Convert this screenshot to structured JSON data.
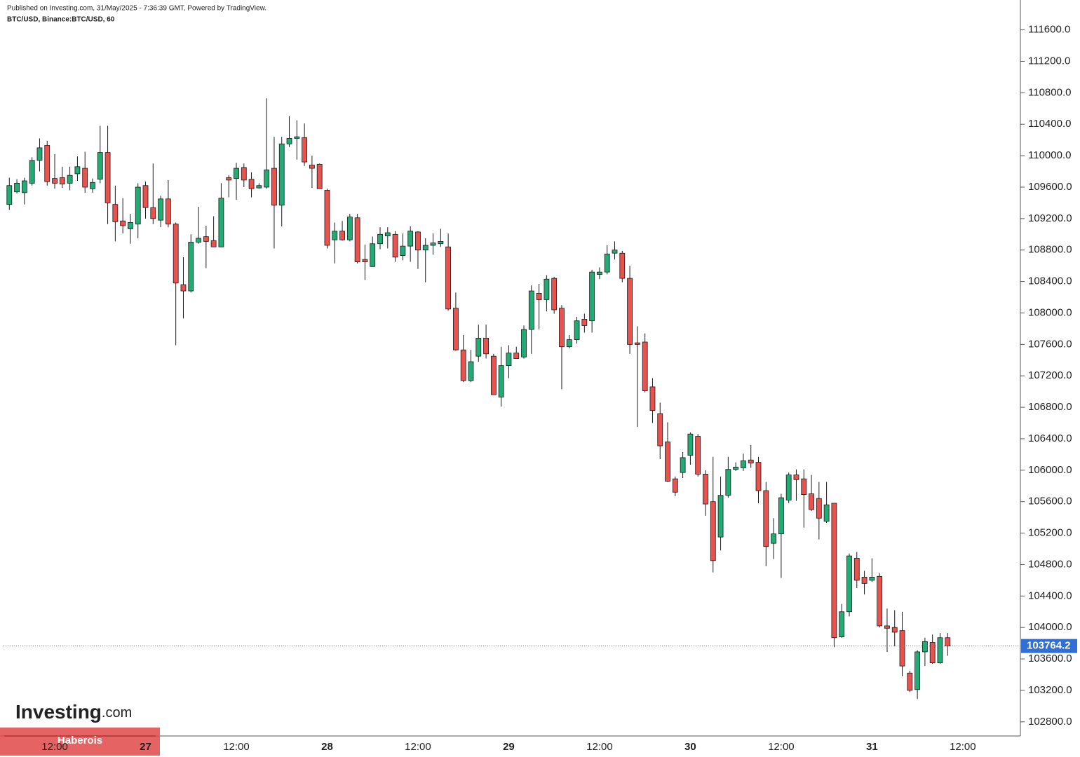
{
  "header": {
    "published": "Published on Investing.com, 31/May/2025 - 7:36:39 GMT, Powered by TradingView.",
    "symbol": "BTC/USD, Binance:BTC/USD, 60"
  },
  "watermark": {
    "logo": "Investing",
    "logo_suffix": ".com",
    "banner": "Haberois"
  },
  "chart_data": {
    "type": "candlestick",
    "up_color": "#22ab74",
    "down_color": "#e8534f",
    "ylim": [
      102620,
      111980
    ],
    "yticks": [
      {
        "value": 102800,
        "label": "102800.0"
      },
      {
        "value": 103200,
        "label": "103200.0"
      },
      {
        "value": 103600,
        "label": "103600.0"
      },
      {
        "value": 104000,
        "label": "104000.0"
      },
      {
        "value": 104400,
        "label": "104400.0"
      },
      {
        "value": 104800,
        "label": "104800.0"
      },
      {
        "value": 105200,
        "label": "105200.0"
      },
      {
        "value": 105600,
        "label": "105600.0"
      },
      {
        "value": 106000,
        "label": "106000.0"
      },
      {
        "value": 106400,
        "label": "106400.0"
      },
      {
        "value": 106800,
        "label": "106800.0"
      },
      {
        "value": 107200,
        "label": "107200.0"
      },
      {
        "value": 107600,
        "label": "107600.0"
      },
      {
        "value": 108000,
        "label": "108000.0"
      },
      {
        "value": 108400,
        "label": "108400.0"
      },
      {
        "value": 108800,
        "label": "108800.0"
      },
      {
        "value": 109200,
        "label": "109200.0"
      },
      {
        "value": 109600,
        "label": "109600.0"
      },
      {
        "value": 110000,
        "label": "110000.0"
      },
      {
        "value": 110400,
        "label": "110400.0"
      },
      {
        "value": 110800,
        "label": "110800.0"
      },
      {
        "value": 111200,
        "label": "111200.0"
      },
      {
        "value": 111600,
        "label": "111600.0"
      }
    ],
    "categories": [
      null,
      null,
      null,
      null,
      null,
      null,
      "12:00",
      null,
      null,
      null,
      null,
      null,
      null,
      null,
      null,
      null,
      null,
      null,
      "27",
      null,
      null,
      null,
      null,
      null,
      null,
      null,
      null,
      null,
      null,
      null,
      "12:00",
      null,
      null,
      null,
      null,
      null,
      null,
      null,
      null,
      null,
      null,
      null,
      "28",
      null,
      null,
      null,
      null,
      null,
      null,
      null,
      null,
      null,
      null,
      null,
      "12:00",
      null,
      null,
      null,
      null,
      null,
      null,
      null,
      null,
      null,
      null,
      null,
      "29",
      null,
      null,
      null,
      null,
      null,
      null,
      null,
      null,
      null,
      null,
      null,
      "12:00",
      null,
      null,
      null,
      null,
      null,
      null,
      null,
      null,
      null,
      null,
      null,
      "30",
      null,
      null,
      null,
      null,
      null,
      null,
      null,
      null,
      null,
      null,
      null,
      "12:00",
      null,
      null,
      null,
      null,
      null,
      null,
      null,
      null,
      null,
      null,
      null,
      "31",
      null,
      null,
      null,
      null,
      null,
      null,
      null,
      null,
      null,
      null,
      null,
      "12:00"
    ],
    "open": [
      109380,
      109540,
      109530,
      109650,
      109940,
      110130,
      109710,
      109720,
      109650,
      109770,
      109840,
      109580,
      109700,
      110040,
      109380,
      109170,
      109070,
      109130,
      109620,
      109340,
      109180,
      109450,
      109130,
      108360,
      108280,
      108900,
      108970,
      108920,
      108840,
      109720,
      109710,
      109850,
      109700,
      109590,
      109600,
      109840,
      109370,
      110150,
      110220,
      110230,
      109880,
      109890,
      109560,
      108930,
      109040,
      108930,
      109210,
      108680,
      108590,
      108880,
      108980,
      109000,
      108730,
      108850,
      109030,
      108800,
      108860,
      108880,
      108840,
      108060,
      107530,
      107140,
      107450,
      107680,
      107450,
      106930,
      107330,
      107490,
      107440,
      107790,
      108250,
      108170,
      108440,
      108060,
      107570,
      107660,
      107920,
      107900,
      108490,
      108520,
      108760,
      108760,
      108440,
      107620,
      107630,
      107060,
      106720,
      106360,
      105890,
      105970,
      106190,
      106430,
      105950,
      105600,
      105150,
      105680,
      106010,
      106030,
      106130,
      106100,
      105740,
      105070,
      105190,
      105620,
      105940,
      105890,
      105700,
      105640,
      105350,
      105580,
      103880,
      104200,
      104880,
      104640,
      104600,
      104650,
      104020,
      104000,
      103960,
      103420,
      103210,
      103690,
      103810,
      103550,
      103870,
      null,
      null
    ],
    "high": [
      109720,
      109700,
      109720,
      109980,
      110220,
      110190,
      110020,
      109860,
      109860,
      109990,
      110050,
      109710,
      110380,
      110380,
      109620,
      109460,
      109260,
      109650,
      109670,
      109900,
      109490,
      109690,
      109150,
      108710,
      109000,
      109350,
      109110,
      109230,
      109650,
      109750,
      109910,
      109900,
      109790,
      109650,
      110730,
      110240,
      110240,
      110500,
      110450,
      110410,
      110000,
      109900,
      109580,
      109150,
      109170,
      109260,
      109260,
      108870,
      108970,
      109090,
      109090,
      109040,
      109010,
      109100,
      109040,
      108950,
      109010,
      109070,
      109010,
      108260,
      107720,
      107530,
      107850,
      107850,
      107480,
      107570,
      107590,
      107570,
      107840,
      108350,
      108370,
      108480,
      108460,
      108100,
      107720,
      107950,
      107990,
      108550,
      108580,
      108860,
      108910,
      108790,
      108600,
      107830,
      107740,
      107170,
      106860,
      106610,
      105920,
      106230,
      106480,
      106460,
      106000,
      106170,
      105920,
      106170,
      106100,
      106210,
      106320,
      106170,
      105850,
      105390,
      105700,
      105970,
      106010,
      106010,
      105940,
      105850,
      105850,
      105580,
      104300,
      104940,
      104960,
      104720,
      104880,
      104690,
      104240,
      104220,
      104200,
      103450,
      103710,
      103870,
      103910,
      103930,
      103930,
      null,
      null
    ],
    "low": [
      109310,
      109520,
      109380,
      109620,
      109800,
      109620,
      109580,
      109590,
      109560,
      109680,
      109530,
      109530,
      109650,
      109130,
      108910,
      109010,
      108880,
      108950,
      109200,
      109130,
      109090,
      109090,
      107590,
      107930,
      108260,
      108880,
      108570,
      108840,
      108840,
      109470,
      109440,
      109600,
      109470,
      109580,
      109580,
      108820,
      109100,
      110110,
      109950,
      109870,
      109590,
      109580,
      108820,
      108630,
      108920,
      108910,
      108630,
      108420,
      108590,
      108810,
      108820,
      108650,
      108670,
      108650,
      108560,
      108390,
      108740,
      108840,
      108030,
      107520,
      107120,
      107120,
      107380,
      107420,
      106960,
      106810,
      107170,
      107420,
      107420,
      107480,
      107790,
      108020,
      107990,
      107030,
      107550,
      107610,
      107750,
      107750,
      108430,
      108490,
      108680,
      108390,
      107480,
      106550,
      106990,
      106600,
      106140,
      105850,
      105670,
      105900,
      106070,
      105920,
      105420,
      104700,
      104980,
      105650,
      105990,
      105990,
      106030,
      105580,
      104780,
      104870,
      104630,
      105580,
      105610,
      105270,
      105480,
      105120,
      105330,
      103750,
      103870,
      104140,
      104500,
      104420,
      104580,
      104000,
      103690,
      103760,
      103380,
      103180,
      103090,
      103510,
      103540,
      103540,
      103640,
      null,
      null
    ],
    "close": [
      109620,
      109650,
      109680,
      109940,
      110100,
      109670,
      109650,
      109640,
      109750,
      109860,
      109600,
      109660,
      110040,
      109400,
      109160,
      109110,
      109150,
      109600,
      109340,
      109200,
      109450,
      109130,
      108380,
      108280,
      108900,
      108950,
      108910,
      108840,
      109460,
      109690,
      109840,
      109690,
      109580,
      109620,
      109820,
      109370,
      110150,
      110220,
      110240,
      109920,
      109840,
      109580,
      108860,
      109040,
      108930,
      109220,
      108650,
      108650,
      108880,
      109000,
      109020,
      108710,
      108850,
      109040,
      108800,
      108860,
      108890,
      108910,
      108050,
      107530,
      107140,
      107380,
      107680,
      107480,
      106960,
      107330,
      107490,
      107420,
      107790,
      108280,
      108170,
      108430,
      108040,
      107570,
      107660,
      107900,
      107840,
      108520,
      108520,
      108750,
      108800,
      108440,
      107600,
      107600,
      107010,
      106760,
      106310,
      105860,
      105720,
      106160,
      106460,
      105950,
      105570,
      104850,
      105680,
      106010,
      106040,
      106120,
      106090,
      105740,
      105030,
      105190,
      105650,
      105940,
      105880,
      105690,
      105500,
      105390,
      105560,
      103870,
      104200,
      104910,
      104600,
      104560,
      104640,
      104020,
      103990,
      103940,
      103510,
      103200,
      103690,
      103820,
      103550,
      103870,
      103764.2,
      null,
      null
    ]
  }
}
